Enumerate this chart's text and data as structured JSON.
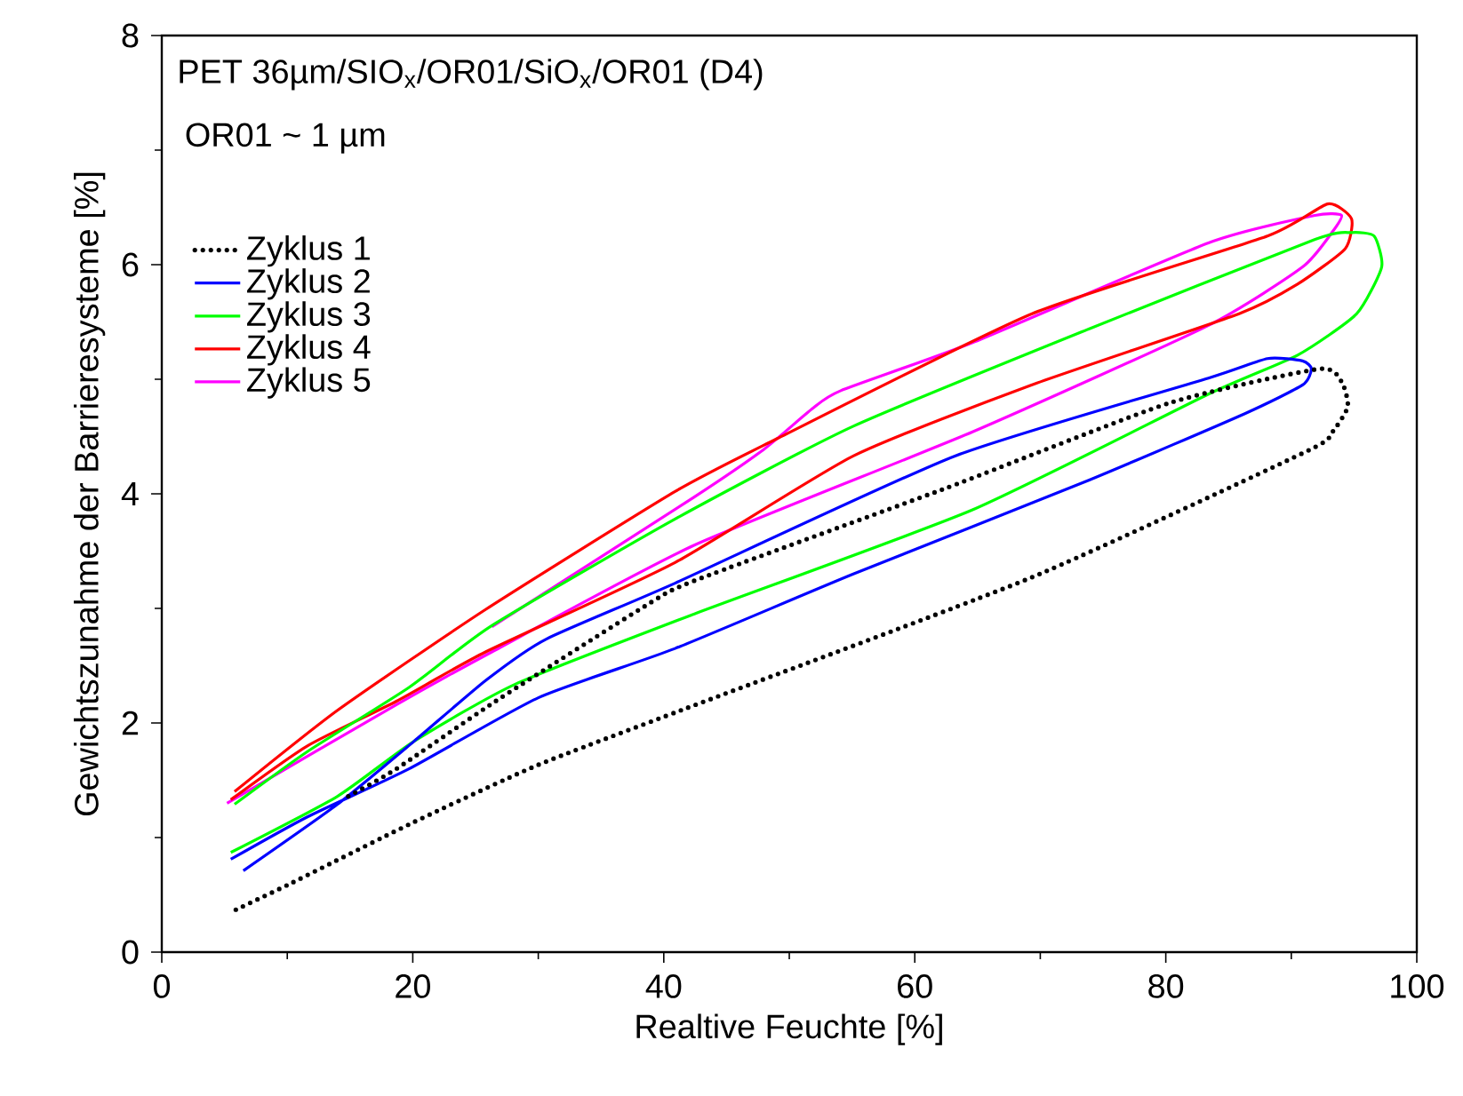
{
  "chart_data": {
    "type": "line",
    "title": "PET 36µm/SIO$_{x}$/OR01/SiO$_{x}$/OR01 (D4)",
    "annotations": [
      "OR01 ~ 1 µm"
    ],
    "xlabel": "Realtive Feuchte [%]",
    "ylabel": "Gewichtszunahme der Barrieresysteme [%]",
    "xlim": [
      0,
      100
    ],
    "ylim": [
      0,
      8
    ],
    "xticks": [
      0,
      20,
      40,
      60,
      80,
      100
    ],
    "yticks": [
      0,
      2,
      4,
      6,
      8
    ],
    "legend": "top left",
    "grid": false,
    "series": [
      {
        "name": "Zyklus 1",
        "color": "#000000",
        "line_style": "dotted",
        "x": [
          5.9,
          10.1,
          20.0,
          29.9,
          41.6,
          69.3,
          91.2,
          93.2,
          94.5,
          94.0,
          92.2,
          80.2,
          62.5,
          42.4,
          38.5,
          26.6,
          18.7,
          14.7
        ],
        "values": [
          0.37,
          0.59,
          1.13,
          1.63,
          2.12,
          3.27,
          4.37,
          4.53,
          4.76,
          4.98,
          5.09,
          4.79,
          4.05,
          3.24,
          3.02,
          2.19,
          1.6,
          1.35
        ]
      },
      {
        "name": "Zyklus 2",
        "color": "#0000ff",
        "line_style": "solid",
        "x": [
          6.5,
          14.0,
          20.1,
          25.8,
          30.6,
          40.9,
          63.2,
          83.4,
          88.1,
          90.9,
          91.6,
          90.9,
          86.3,
          73.9,
          55.1,
          40.9,
          30.0,
          19.7,
          11.6,
          5.5
        ],
        "values": [
          0.71,
          1.29,
          1.84,
          2.37,
          2.73,
          3.22,
          4.33,
          5.01,
          5.18,
          5.16,
          5.09,
          4.95,
          4.7,
          4.12,
          3.3,
          2.65,
          2.22,
          1.6,
          1.18,
          0.81
        ]
      },
      {
        "name": "Zyklus 3",
        "color": "#00ff00",
        "line_style": "solid",
        "x": [
          5.5,
          14.0,
          20.1,
          28.2,
          42.4,
          64.6,
          83.4,
          90.5,
          95.2,
          97.2,
          96.6,
          94.8,
          91.9,
          73.9,
          55.1,
          40.9,
          26.3,
          19.7,
          11.6,
          5.8
        ],
        "values": [
          0.87,
          1.36,
          1.84,
          2.34,
          2.95,
          3.86,
          4.87,
          5.21,
          5.57,
          5.98,
          6.25,
          6.28,
          6.22,
          5.44,
          4.59,
          3.78,
          2.85,
          2.31,
          1.75,
          1.29
        ]
      },
      {
        "name": "Zyklus 4",
        "color": "#ff0000",
        "line_style": "solid",
        "x": [
          5.8,
          14.0,
          25.8,
          40.9,
          49.0,
          69.3,
          88.1,
          92.9,
          94.8,
          94.3,
          90.5,
          85.8,
          69.3,
          55.1,
          40.9,
          25.8,
          18.7,
          11.6,
          5.5
        ],
        "values": [
          1.4,
          2.11,
          2.99,
          4.02,
          4.48,
          5.57,
          6.25,
          6.53,
          6.4,
          6.14,
          5.83,
          5.57,
          4.95,
          4.33,
          3.4,
          2.62,
          2.19,
          1.8,
          1.33
        ]
      },
      {
        "name": "Zyklus 5",
        "color": "#ff00ff",
        "line_style": "solid",
        "x": [
          5.2,
          18.7,
          26.3,
          42.4,
          64.6,
          83.4,
          90.9,
          93.3,
          94.0,
          91.9,
          83.4,
          64.6,
          54.1,
          51.8,
          48.0,
          42.4,
          26.3
        ],
        "values": [
          1.3,
          2.16,
          2.62,
          3.55,
          4.54,
          5.47,
          5.98,
          6.29,
          6.43,
          6.43,
          6.19,
          5.32,
          4.9,
          4.74,
          4.39,
          3.97,
          2.84
        ]
      }
    ]
  }
}
